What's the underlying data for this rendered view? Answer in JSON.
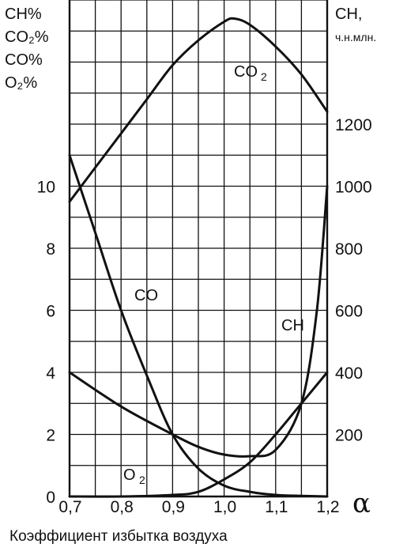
{
  "chart_data": {
    "type": "line",
    "xlabel": "Коэффициент избытка воздуха",
    "x_symbol": "α",
    "xlim": [
      0.7,
      1.2
    ],
    "x_ticks": [
      "0,7",
      "0,8",
      "0,9",
      "1,0",
      "1,1",
      "1,2"
    ],
    "y_left": {
      "label_lines": [
        "CH%",
        "CO₂%",
        "CO%",
        "O₂%"
      ],
      "lim": [
        0,
        16
      ],
      "ticks": [
        "0",
        "2",
        "4",
        "6",
        "8",
        "10"
      ],
      "tick_values": [
        0,
        2,
        4,
        6,
        8,
        10
      ]
    },
    "y_right": {
      "label_lines": [
        "CH,",
        "ч.н.млн."
      ],
      "lim": [
        0,
        1600
      ],
      "ticks": [
        "200",
        "400",
        "600",
        "800",
        "1000",
        "1200"
      ],
      "tick_values": [
        200,
        400,
        600,
        800,
        1000,
        1200
      ]
    },
    "grid": true,
    "series": [
      {
        "name": "CO₂",
        "axis": "left",
        "x": [
          0.7,
          0.75,
          0.8,
          0.85,
          0.9,
          0.95,
          1.0,
          1.02,
          1.05,
          1.1,
          1.15,
          1.2
        ],
        "y": [
          9.5,
          10.6,
          11.7,
          12.8,
          13.9,
          14.7,
          15.3,
          15.4,
          15.2,
          14.5,
          13.6,
          12.4
        ]
      },
      {
        "name": "CO",
        "axis": "left",
        "x": [
          0.7,
          0.75,
          0.8,
          0.85,
          0.9,
          0.95,
          1.0,
          1.05,
          1.1,
          1.15,
          1.2
        ],
        "y": [
          11.0,
          8.5,
          6.0,
          3.9,
          2.0,
          0.9,
          0.35,
          0.15,
          0.05,
          0.02,
          0.0
        ]
      },
      {
        "name": "O₂",
        "axis": "left",
        "x": [
          0.7,
          0.8,
          0.9,
          0.95,
          1.0,
          1.05,
          1.1,
          1.15,
          1.2
        ],
        "y": [
          0.0,
          0.0,
          0.05,
          0.15,
          0.55,
          1.1,
          2.0,
          3.0,
          4.0
        ]
      },
      {
        "name": "CH",
        "axis": "right",
        "x": [
          0.7,
          0.8,
          0.9,
          0.95,
          1.0,
          1.05,
          1.1,
          1.15,
          1.18,
          1.2
        ],
        "y": [
          400,
          290,
          200,
          160,
          135,
          130,
          150,
          300,
          600,
          1000
        ]
      }
    ],
    "annotations": [
      {
        "text": "CO",
        "sub": "2",
        "series": "CO₂"
      },
      {
        "text": "CO",
        "sub": "",
        "series": "CO"
      },
      {
        "text": "O",
        "sub": "2",
        "series": "O₂"
      },
      {
        "text": "CH",
        "sub": "",
        "series": "CH"
      }
    ]
  }
}
